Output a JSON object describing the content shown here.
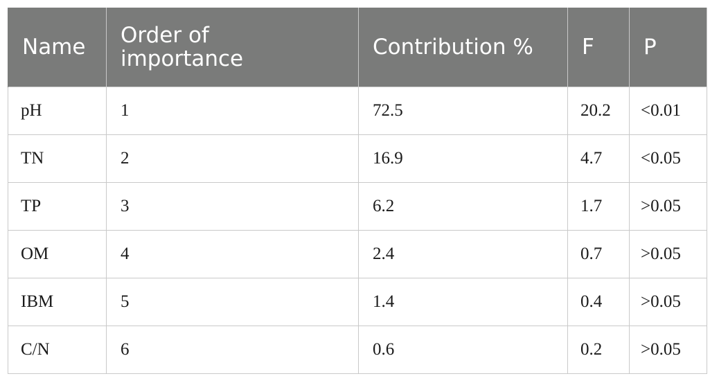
{
  "table": {
    "headers": {
      "name": "Name",
      "order": "Order of importance",
      "contribution": "Contribution %",
      "f": "F",
      "p": "P"
    },
    "rows": [
      {
        "name": "pH",
        "order": "1",
        "contribution": "72.5",
        "f": "20.2",
        "p": "<0.01"
      },
      {
        "name": "TN",
        "order": "2",
        "contribution": "16.9",
        "f": "4.7",
        "p": "<0.05"
      },
      {
        "name": "TP",
        "order": "3",
        "contribution": "6.2",
        "f": "1.7",
        "p": ">0.05"
      },
      {
        "name": "OM",
        "order": "4",
        "contribution": "2.4",
        "f": "0.7",
        "p": ">0.05"
      },
      {
        "name": "IBM",
        "order": "5",
        "contribution": "1.4",
        "f": "0.4",
        "p": ">0.05"
      },
      {
        "name": "C/N",
        "order": "6",
        "contribution": "0.6",
        "f": "0.2",
        "p": ">0.05"
      }
    ]
  }
}
